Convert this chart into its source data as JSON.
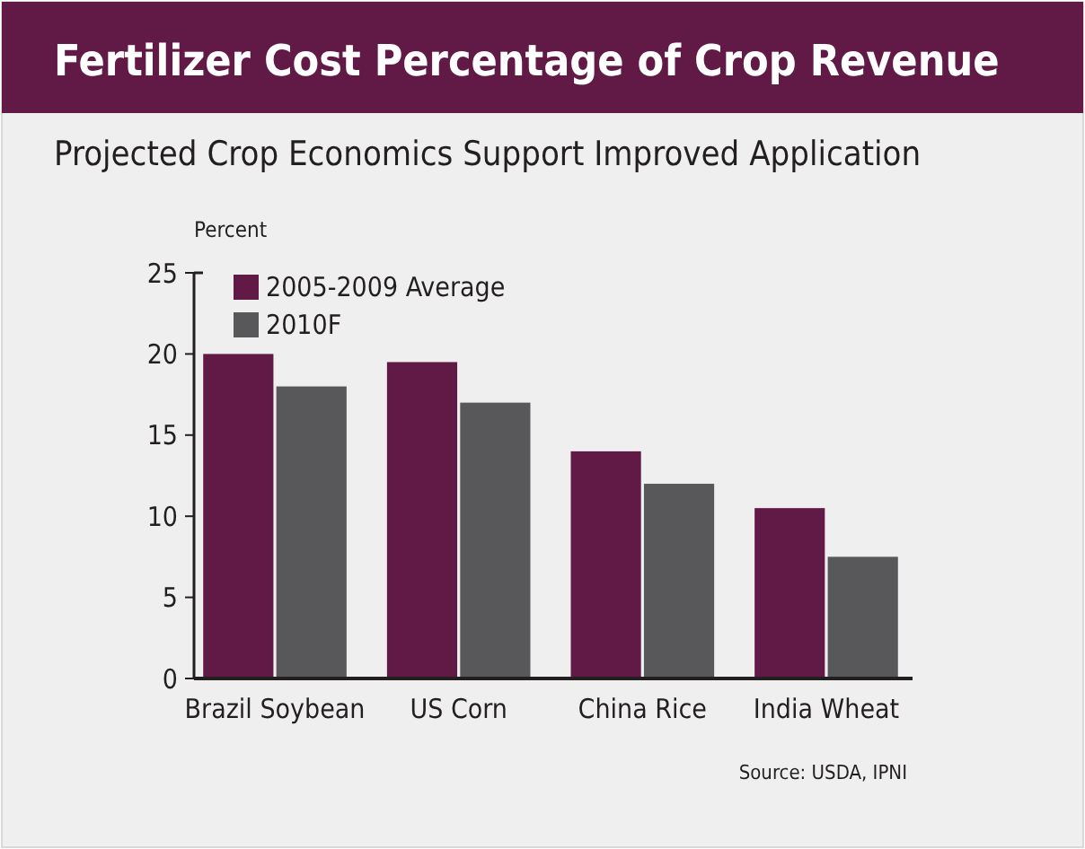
{
  "chart_data": {
    "type": "bar",
    "title": "Fertilizer Cost Percentage of Crop Revenue",
    "subtitle": "Projected Crop Economics Support Improved Application",
    "ylabel": "Percent",
    "categories": [
      "Brazil Soybean",
      "US Corn",
      "China Rice",
      "India Wheat"
    ],
    "series": [
      {
        "name": "2005-2009 Average",
        "color": "#611a46",
        "values": [
          20,
          19.5,
          14,
          10.5
        ]
      },
      {
        "name": "2010F",
        "color": "#58585a",
        "values": [
          18,
          17,
          12,
          7.5
        ]
      }
    ],
    "ylim": [
      0,
      25
    ],
    "yticks": [
      0,
      5,
      10,
      15,
      20,
      25
    ],
    "grid": false,
    "legend": "top left",
    "annotations": [
      "Source: USDA, IPNI"
    ]
  }
}
